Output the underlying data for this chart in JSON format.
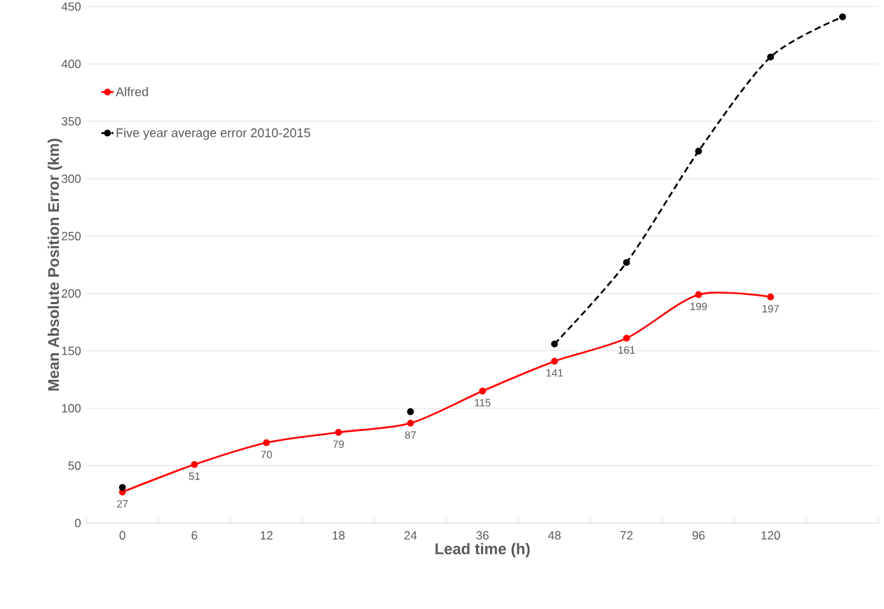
{
  "chart_data": {
    "type": "line",
    "xlabel": "Lead time (h)",
    "ylabel": "Mean Absolute Position Error (km)",
    "categories": [
      "0",
      "6",
      "12",
      "18",
      "24",
      "36",
      "48",
      "72",
      "96",
      "120",
      null
    ],
    "series": [
      {
        "name": "Alfred",
        "color": "#ff0000",
        "line_style": "solid",
        "values": [
          27,
          51,
          70,
          79,
          87,
          115,
          141,
          161,
          199,
          197,
          null
        ],
        "value_labels": [
          "27",
          "51",
          "70",
          "79",
          "87",
          "115",
          "141",
          "161",
          "199",
          "197",
          null
        ]
      },
      {
        "name": "Five year average error 2010-2015",
        "color": "#000000",
        "line_style": "dashed",
        "values": [
          31,
          null,
          null,
          null,
          97,
          null,
          156,
          227,
          324,
          406,
          441
        ]
      }
    ],
    "ylim": [
      0,
      450
    ],
    "yticks": [
      0,
      50,
      100,
      150,
      200,
      250,
      300,
      350,
      400,
      450
    ],
    "grid": "y",
    "legend": "top left",
    "marker": "circle"
  }
}
